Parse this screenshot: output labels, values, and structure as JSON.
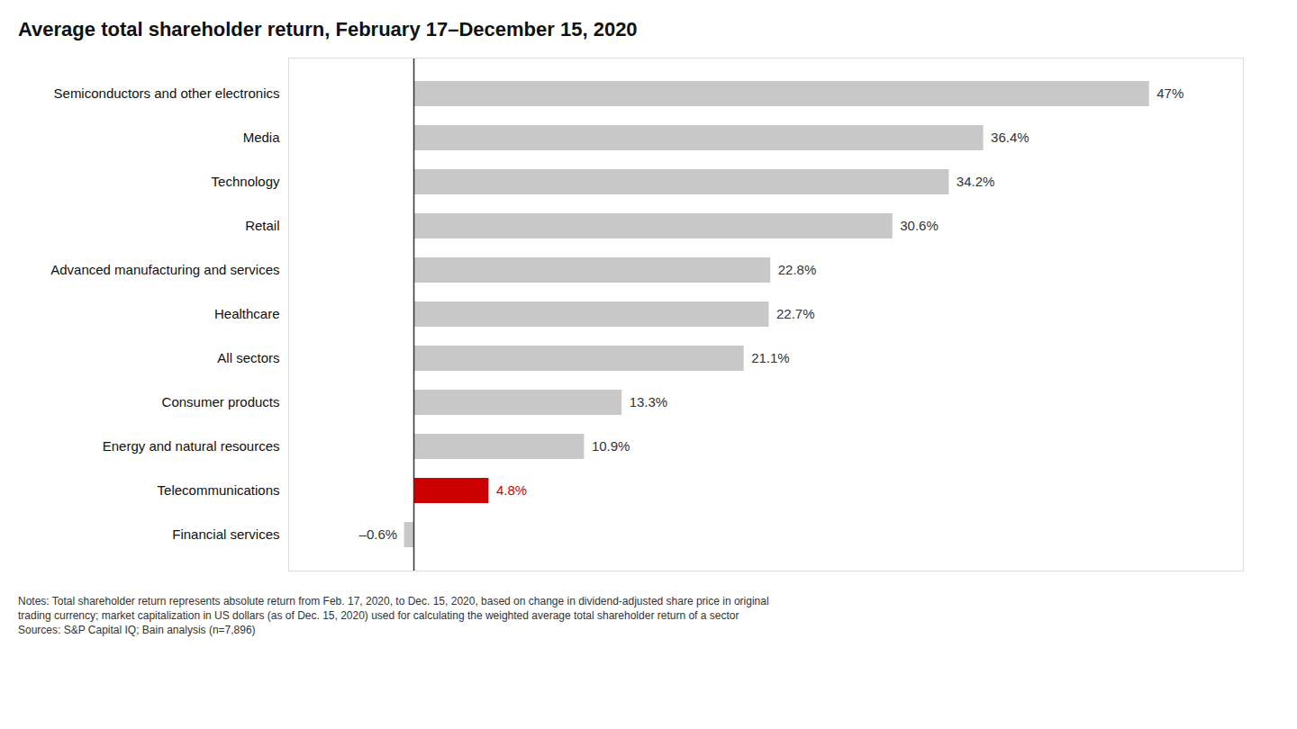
{
  "chart_data": {
    "type": "bar",
    "orientation": "horizontal",
    "title": "Average total shareholder return, February 17–December 15, 2020",
    "categories": [
      "Semiconductors and other electronics",
      "Media",
      "Technology",
      "Retail",
      "Advanced manufacturing and services",
      "Healthcare",
      "All sectors",
      "Consumer products",
      "Energy and natural resources",
      "Telecommunications",
      "Financial services"
    ],
    "values": [
      47.0,
      36.4,
      34.2,
      30.6,
      22.8,
      22.7,
      21.1,
      13.3,
      10.9,
      4.8,
      -0.6
    ],
    "value_labels": [
      "47%",
      "36.4%",
      "34.2%",
      "30.6%",
      "22.8%",
      "22.7%",
      "21.1%",
      "13.3%",
      "10.9%",
      "4.8%",
      "–0.6%"
    ],
    "colors": [
      "#c8c8c8",
      "#c8c8c8",
      "#c8c8c8",
      "#c8c8c8",
      "#c8c8c8",
      "#c8c8c8",
      "#c8c8c8",
      "#c8c8c8",
      "#c8c8c8",
      "#cc0000",
      "#c8c8c8"
    ],
    "xlim": [
      -8,
      53
    ],
    "data_labels": true,
    "tick_labels": "y",
    "grid": false,
    "annotations": [
      "Notes: Total shareholder return represents absolute return from Feb. 17, 2020, to Dec. 15, 2020, based on change in dividend-adjusted share price in original\ntrading currency; market capitalization in US dollars (as of Dec. 15, 2020) used for calculating the weighted average total shareholder return of a sector\nSources: S&P Capital IQ; Bain analysis (n=7,896)"
    ]
  }
}
